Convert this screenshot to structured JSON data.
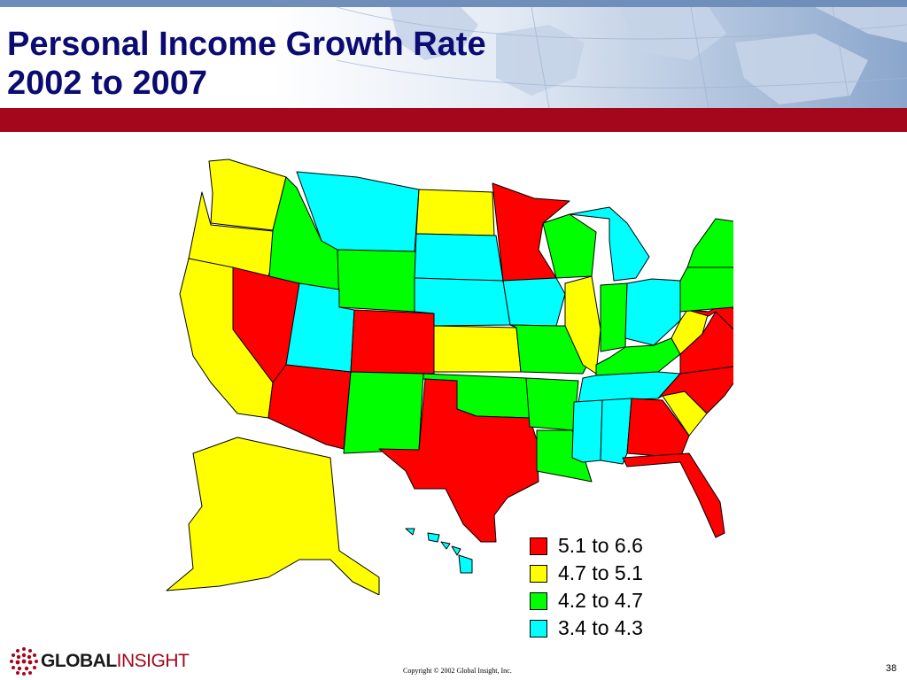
{
  "slide": {
    "title": "Personal Income Growth Rate\n2002 to 2007",
    "page_number": "38",
    "copyright": "Copyright © 2002 Global Insight, Inc.",
    "logo": {
      "bold": "GLOBAL",
      "light": "INSIGHT"
    }
  },
  "colors": {
    "title": "#0b0b72",
    "banner_rule": "#a4061c",
    "banner_stripe": "#6f8fba"
  },
  "legend": [
    {
      "label": "5.1 to 6.6",
      "color": "#ff0000"
    },
    {
      "label": "4.7 to 5.1",
      "color": "#ffff00"
    },
    {
      "label": "4.2 to 4.7",
      "color": "#00ff00"
    },
    {
      "label": "3.4 to 4.3",
      "color": "#00ffff"
    }
  ],
  "map": {
    "states": [
      {
        "code": "WA",
        "category": 1
      },
      {
        "code": "OR",
        "category": 1
      },
      {
        "code": "CA",
        "category": 1
      },
      {
        "code": "NV",
        "category": 0
      },
      {
        "code": "ID",
        "category": 2
      },
      {
        "code": "MT",
        "category": 3
      },
      {
        "code": "WY",
        "category": 2
      },
      {
        "code": "UT",
        "category": 3
      },
      {
        "code": "AZ",
        "category": 0
      },
      {
        "code": "CO",
        "category": 0
      },
      {
        "code": "NM",
        "category": 2
      },
      {
        "code": "ND",
        "category": 1
      },
      {
        "code": "SD",
        "category": 3
      },
      {
        "code": "NE",
        "category": 3
      },
      {
        "code": "KS",
        "category": 1
      },
      {
        "code": "OK",
        "category": 2
      },
      {
        "code": "TX",
        "category": 0
      },
      {
        "code": "MN",
        "category": 0
      },
      {
        "code": "IA",
        "category": 3
      },
      {
        "code": "MO",
        "category": 2
      },
      {
        "code": "AR",
        "category": 2
      },
      {
        "code": "LA",
        "category": 2
      },
      {
        "code": "WI",
        "category": 2
      },
      {
        "code": "IL",
        "category": 1
      },
      {
        "code": "MI",
        "category": 3
      },
      {
        "code": "IN",
        "category": 2
      },
      {
        "code": "OH",
        "category": 3
      },
      {
        "code": "KY",
        "category": 2
      },
      {
        "code": "TN",
        "category": 3
      },
      {
        "code": "MS",
        "category": 3
      },
      {
        "code": "AL",
        "category": 3
      },
      {
        "code": "GA",
        "category": 0
      },
      {
        "code": "FL",
        "category": 0
      },
      {
        "code": "SC",
        "category": 1
      },
      {
        "code": "NC",
        "category": 0
      },
      {
        "code": "VA",
        "category": 0
      },
      {
        "code": "WV",
        "category": 1
      },
      {
        "code": "MD",
        "category": 0
      },
      {
        "code": "DE",
        "category": 0
      },
      {
        "code": "PA",
        "category": 2
      },
      {
        "code": "NJ",
        "category": 1
      },
      {
        "code": "NY",
        "category": 2
      },
      {
        "code": "CT",
        "category": 2
      },
      {
        "code": "RI",
        "category": 3
      },
      {
        "code": "MA",
        "category": 2
      },
      {
        "code": "VT",
        "category": 3
      },
      {
        "code": "NH",
        "category": 1
      },
      {
        "code": "ME",
        "category": 2
      },
      {
        "code": "AK",
        "category": 1
      },
      {
        "code": "HI",
        "category": 3
      }
    ]
  }
}
